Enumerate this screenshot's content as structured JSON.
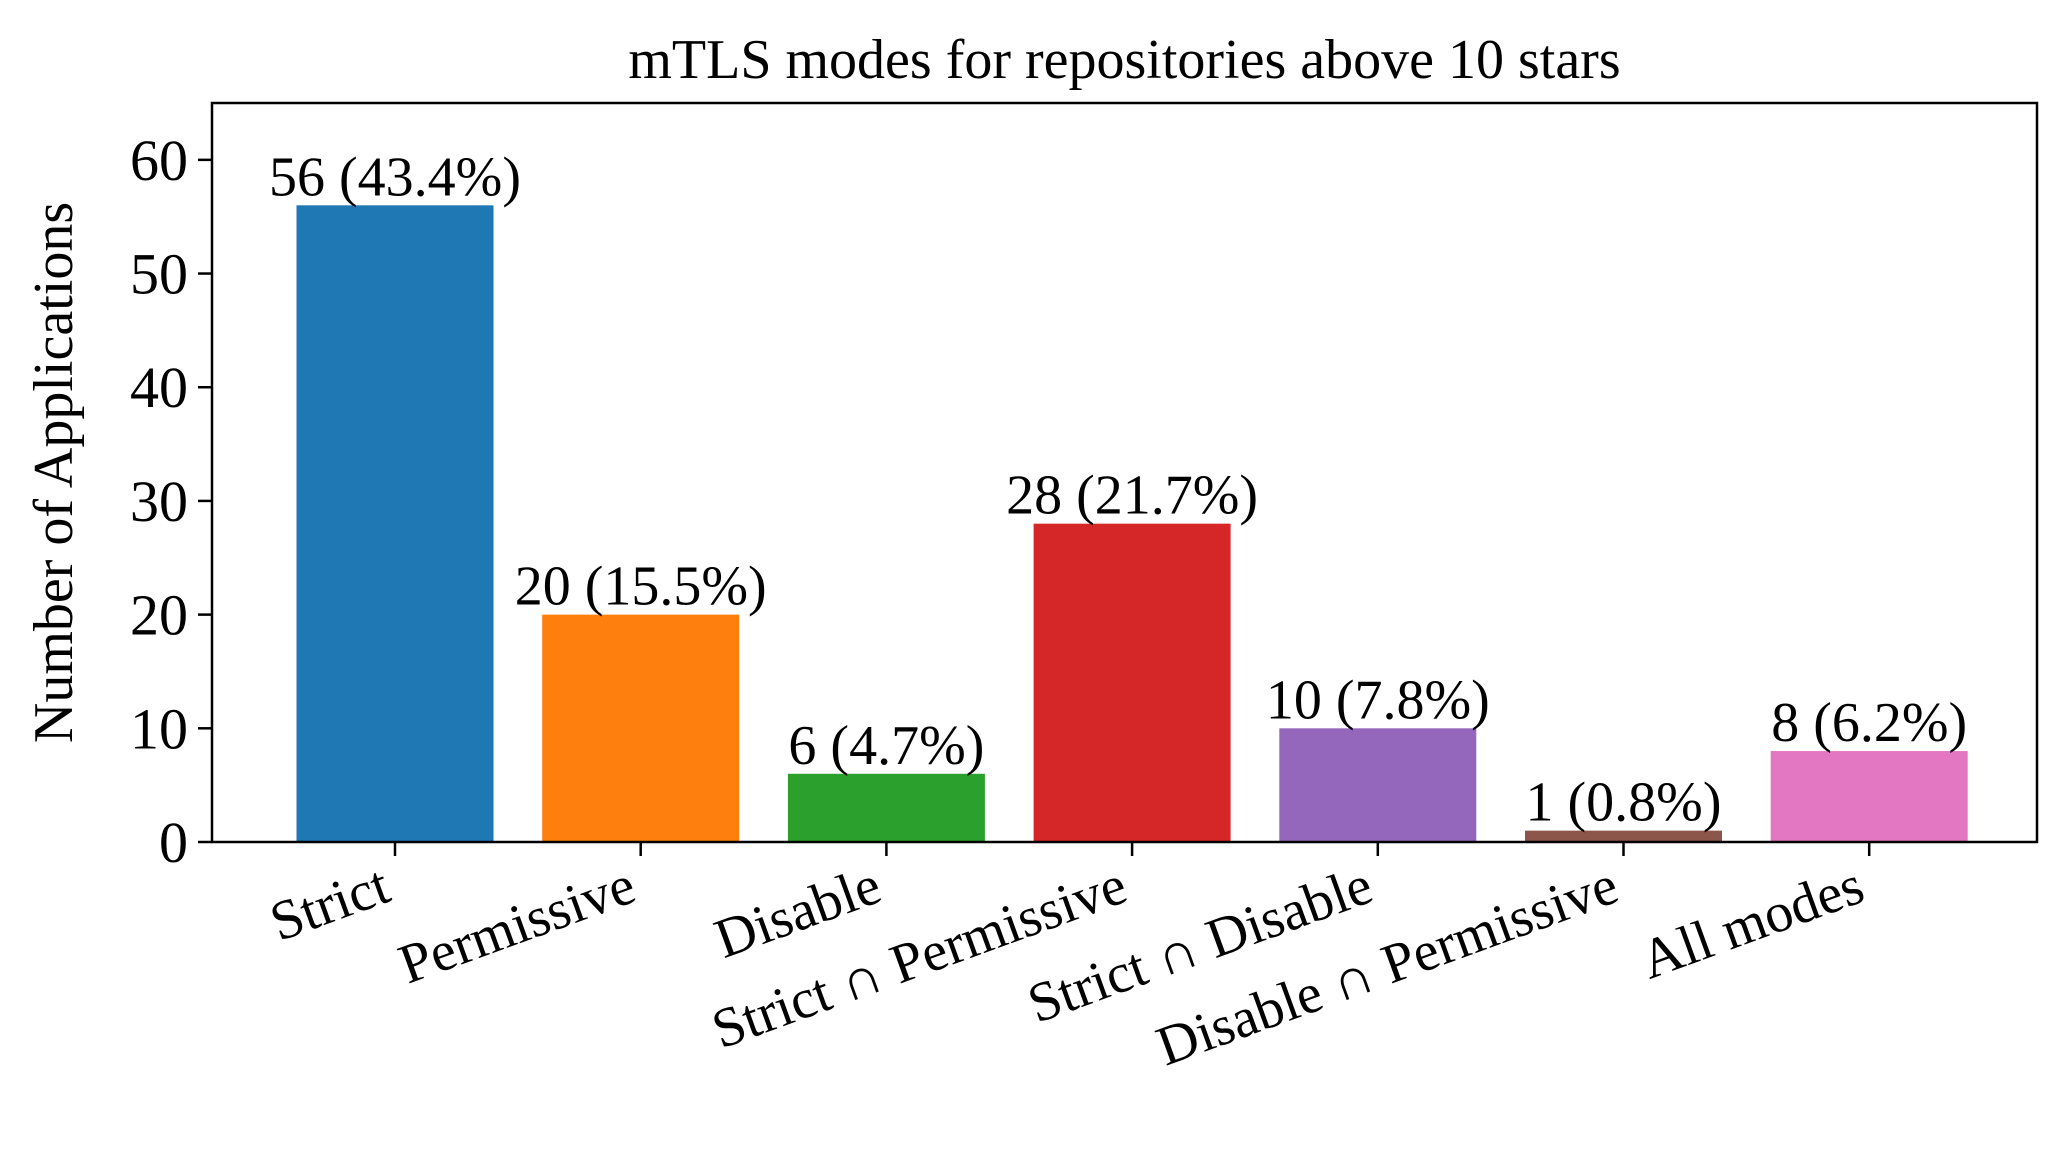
{
  "chart_data": {
    "type": "bar",
    "title": "mTLS modes for repositories above 10 stars",
    "xlabel": "",
    "ylabel": "Number of Applications",
    "ylim": [
      0,
      65
    ],
    "yticks": [
      0,
      10,
      20,
      30,
      40,
      50,
      60
    ],
    "grid": false,
    "categories": [
      "Strict",
      "Permissive",
      "Disable",
      "Strict ∩ Permissive",
      "Strict ∩ Disable",
      "Disable ∩ Permissive",
      "All modes"
    ],
    "values": [
      56,
      20,
      6,
      28,
      10,
      1,
      8
    ],
    "data_labels": [
      "56 (43.4%)",
      "20 (15.5%)",
      "6 (4.7%)",
      "28 (21.7%)",
      "10 (7.8%)",
      "1 (0.8%)",
      "8 (6.2%)"
    ],
    "colors": [
      "#1f77b4",
      "#ff7f0e",
      "#2ca02c",
      "#d62728",
      "#9467bd",
      "#8c564b",
      "#e377c2"
    ]
  }
}
